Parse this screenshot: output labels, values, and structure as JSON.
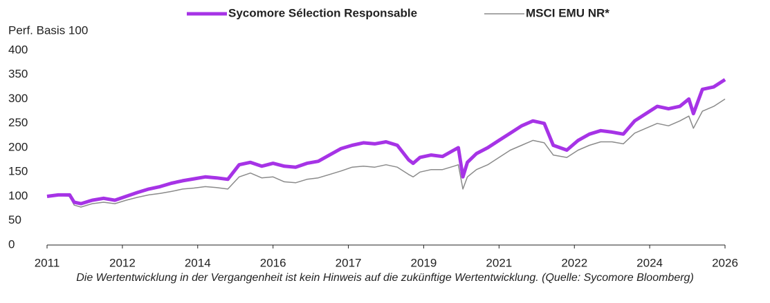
{
  "chart_data": {
    "type": "line",
    "y_label": "Perf. Basis 100",
    "footnote": "Die Wertentwicklung in der Vergangenheit ist kein Hinweis auf die zukünftige Wertentwicklung. (Quelle: Sycomore Bloomberg)",
    "x": [
      2011,
      2011.25,
      2011.5,
      2011.6,
      2011.75,
      2012,
      2012.25,
      2012.5,
      2012.75,
      2013,
      2013.25,
      2013.5,
      2013.75,
      2014,
      2014.25,
      2014.5,
      2014.75,
      2015,
      2015.25,
      2015.5,
      2015.75,
      2016,
      2016.25,
      2016.5,
      2016.75,
      2017,
      2017.25,
      2017.5,
      2017.75,
      2018,
      2018.25,
      2018.5,
      2018.75,
      2019,
      2019.1,
      2019.25,
      2019.5,
      2019.75,
      2020,
      2020.1,
      2020.2,
      2020.3,
      2020.5,
      2020.75,
      2021,
      2021.25,
      2021.5,
      2021.75,
      2022,
      2022.2,
      2022.5,
      2022.75,
      2023,
      2023.25,
      2023.5,
      2023.75,
      2024,
      2024.25,
      2024.5,
      2024.75,
      2025,
      2025.2,
      2025.3,
      2025.5,
      2025.75,
      2026
    ],
    "series": [
      {
        "name": "Sycomore Sélection Responsable",
        "color": "#a633e6",
        "width": 5,
        "values": [
          100,
          103,
          103,
          88,
          85,
          92,
          96,
          92,
          100,
          108,
          115,
          120,
          127,
          132,
          136,
          140,
          138,
          135,
          165,
          170,
          162,
          168,
          162,
          160,
          168,
          172,
          185,
          198,
          205,
          210,
          208,
          212,
          205,
          175,
          168,
          180,
          185,
          182,
          195,
          200,
          140,
          170,
          188,
          200,
          215,
          230,
          245,
          255,
          250,
          205,
          195,
          215,
          228,
          235,
          232,
          228,
          255,
          270,
          285,
          280,
          285,
          300,
          270,
          320,
          325,
          340
        ]
      },
      {
        "name": "MSCI EMU NR*",
        "color": "#8a8a8a",
        "width": 1.5,
        "values": [
          100,
          102,
          100,
          82,
          78,
          85,
          88,
          85,
          92,
          98,
          103,
          106,
          110,
          115,
          117,
          120,
          118,
          115,
          140,
          148,
          138,
          140,
          130,
          128,
          135,
          138,
          145,
          152,
          160,
          162,
          160,
          165,
          160,
          145,
          140,
          150,
          155,
          155,
          162,
          165,
          115,
          140,
          155,
          165,
          180,
          195,
          205,
          215,
          210,
          185,
          180,
          195,
          205,
          212,
          212,
          208,
          230,
          240,
          250,
          245,
          255,
          265,
          240,
          275,
          285,
          300
        ]
      }
    ],
    "xlim": [
      2011,
      2026
    ],
    "xticks": [
      2011,
      {
        "value": 2012.667,
        "label": "2012"
      },
      {
        "value": 2014.333,
        "label": "2014"
      },
      2016,
      {
        "value": 2017.667,
        "label": "2017"
      },
      {
        "value": 2019.333,
        "label": "2019"
      },
      2021,
      {
        "value": 2022.667,
        "label": "2022"
      },
      {
        "value": 2024.333,
        "label": "2024"
      },
      2026
    ],
    "ylim": [
      0,
      400
    ],
    "yticks": [
      0,
      50,
      100,
      150,
      200,
      250,
      300,
      350,
      400
    ],
    "grid": false,
    "legend": "top"
  }
}
